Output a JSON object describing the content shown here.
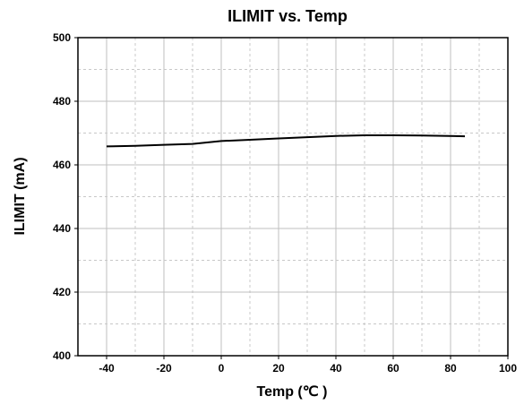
{
  "chart_data": {
    "type": "line",
    "title": "ILIMIT  vs. Temp",
    "xlabel": "Temp (℃ )",
    "ylabel": "ILIMIT (mA)",
    "xlim": [
      -50,
      100
    ],
    "ylim": [
      400,
      500
    ],
    "x_ticks": [
      -40,
      -20,
      0,
      20,
      40,
      60,
      80,
      100
    ],
    "y_ticks": [
      400,
      420,
      440,
      460,
      480,
      500
    ],
    "x_minor_grid_step": 10,
    "y_minor_grid_step": 10,
    "grid": true,
    "series": [
      {
        "x": [
          -40,
          -30,
          -20,
          -10,
          0,
          10,
          20,
          30,
          40,
          50,
          60,
          70,
          85
        ],
        "y": [
          465.8,
          466.0,
          466.3,
          466.6,
          467.5,
          467.9,
          468.3,
          468.7,
          469.1,
          469.3,
          469.3,
          469.2,
          469.0
        ]
      }
    ]
  },
  "colors": {
    "line": "#000000",
    "grid_major": "#bfbfbf",
    "grid_minor": "#c8c8c8",
    "frame": "#000000",
    "background": "#ffffff"
  }
}
